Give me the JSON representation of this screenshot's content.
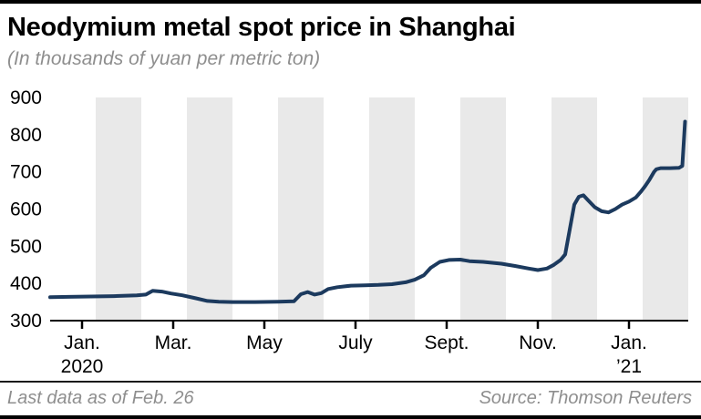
{
  "header": {
    "title": "Neodymium metal spot price in Shanghai",
    "subtitle": "(In thousands of yuan per metric ton)"
  },
  "footer": {
    "note": "Last data as of Feb. 26",
    "source": "Source: Thomson Reuters"
  },
  "colors": {
    "line": "#1c3a5e",
    "band": "#e9e9e9",
    "axis": "#000000",
    "muted_text": "#8e8e8e"
  },
  "chart_data": {
    "type": "line",
    "title": "Neodymium metal spot price in Shanghai",
    "units": "thousands of yuan per metric ton",
    "series_name": "Neodymium spot price",
    "ylim": [
      300,
      900
    ],
    "y_ticks": [
      300,
      400,
      500,
      600,
      700,
      800,
      900
    ],
    "x_range_months": [
      0,
      14
    ],
    "x_ticks": [
      {
        "m": 0.7,
        "label": "Jan.",
        "sub": "2020"
      },
      {
        "m": 2.7,
        "label": "Mar."
      },
      {
        "m": 4.7,
        "label": "May"
      },
      {
        "m": 6.7,
        "label": "July"
      },
      {
        "m": 8.7,
        "label": "Sept."
      },
      {
        "m": 10.7,
        "label": "Nov."
      },
      {
        "m": 12.7,
        "label": "Jan.",
        "sub": "’21"
      }
    ],
    "shaded_months": [
      [
        1,
        2
      ],
      [
        3,
        4
      ],
      [
        5,
        6
      ],
      [
        7,
        8
      ],
      [
        9,
        10
      ],
      [
        11,
        12
      ],
      [
        13,
        14
      ]
    ],
    "grid": false,
    "legend": "none",
    "points": [
      [
        0.0,
        363
      ],
      [
        0.4,
        364
      ],
      [
        0.9,
        365
      ],
      [
        1.4,
        366
      ],
      [
        1.9,
        368
      ],
      [
        2.1,
        370
      ],
      [
        2.25,
        380
      ],
      [
        2.45,
        378
      ],
      [
        2.65,
        373
      ],
      [
        2.9,
        368
      ],
      [
        3.2,
        360
      ],
      [
        3.45,
        353
      ],
      [
        3.7,
        351
      ],
      [
        4.0,
        350
      ],
      [
        4.5,
        350
      ],
      [
        5.0,
        351
      ],
      [
        5.35,
        352
      ],
      [
        5.5,
        371
      ],
      [
        5.65,
        377
      ],
      [
        5.8,
        370
      ],
      [
        5.95,
        374
      ],
      [
        6.1,
        385
      ],
      [
        6.3,
        390
      ],
      [
        6.6,
        394
      ],
      [
        6.9,
        395
      ],
      [
        7.2,
        396
      ],
      [
        7.5,
        398
      ],
      [
        7.8,
        403
      ],
      [
        8.0,
        410
      ],
      [
        8.2,
        422
      ],
      [
        8.35,
        442
      ],
      [
        8.55,
        458
      ],
      [
        8.75,
        463
      ],
      [
        9.0,
        464
      ],
      [
        9.2,
        460
      ],
      [
        9.5,
        458
      ],
      [
        9.9,
        453
      ],
      [
        10.2,
        447
      ],
      [
        10.5,
        440
      ],
      [
        10.7,
        436
      ],
      [
        10.9,
        440
      ],
      [
        11.05,
        450
      ],
      [
        11.2,
        463
      ],
      [
        11.3,
        478
      ],
      [
        11.4,
        545
      ],
      [
        11.5,
        612
      ],
      [
        11.6,
        633
      ],
      [
        11.7,
        637
      ],
      [
        11.8,
        624
      ],
      [
        11.95,
        605
      ],
      [
        12.1,
        594
      ],
      [
        12.25,
        591
      ],
      [
        12.4,
        600
      ],
      [
        12.55,
        612
      ],
      [
        12.7,
        620
      ],
      [
        12.85,
        631
      ],
      [
        12.95,
        645
      ],
      [
        13.05,
        661
      ],
      [
        13.15,
        679
      ],
      [
        13.25,
        700
      ],
      [
        13.3,
        707
      ],
      [
        13.4,
        710
      ],
      [
        13.6,
        710
      ],
      [
        13.8,
        711
      ],
      [
        13.87,
        716
      ],
      [
        13.93,
        835
      ]
    ]
  }
}
